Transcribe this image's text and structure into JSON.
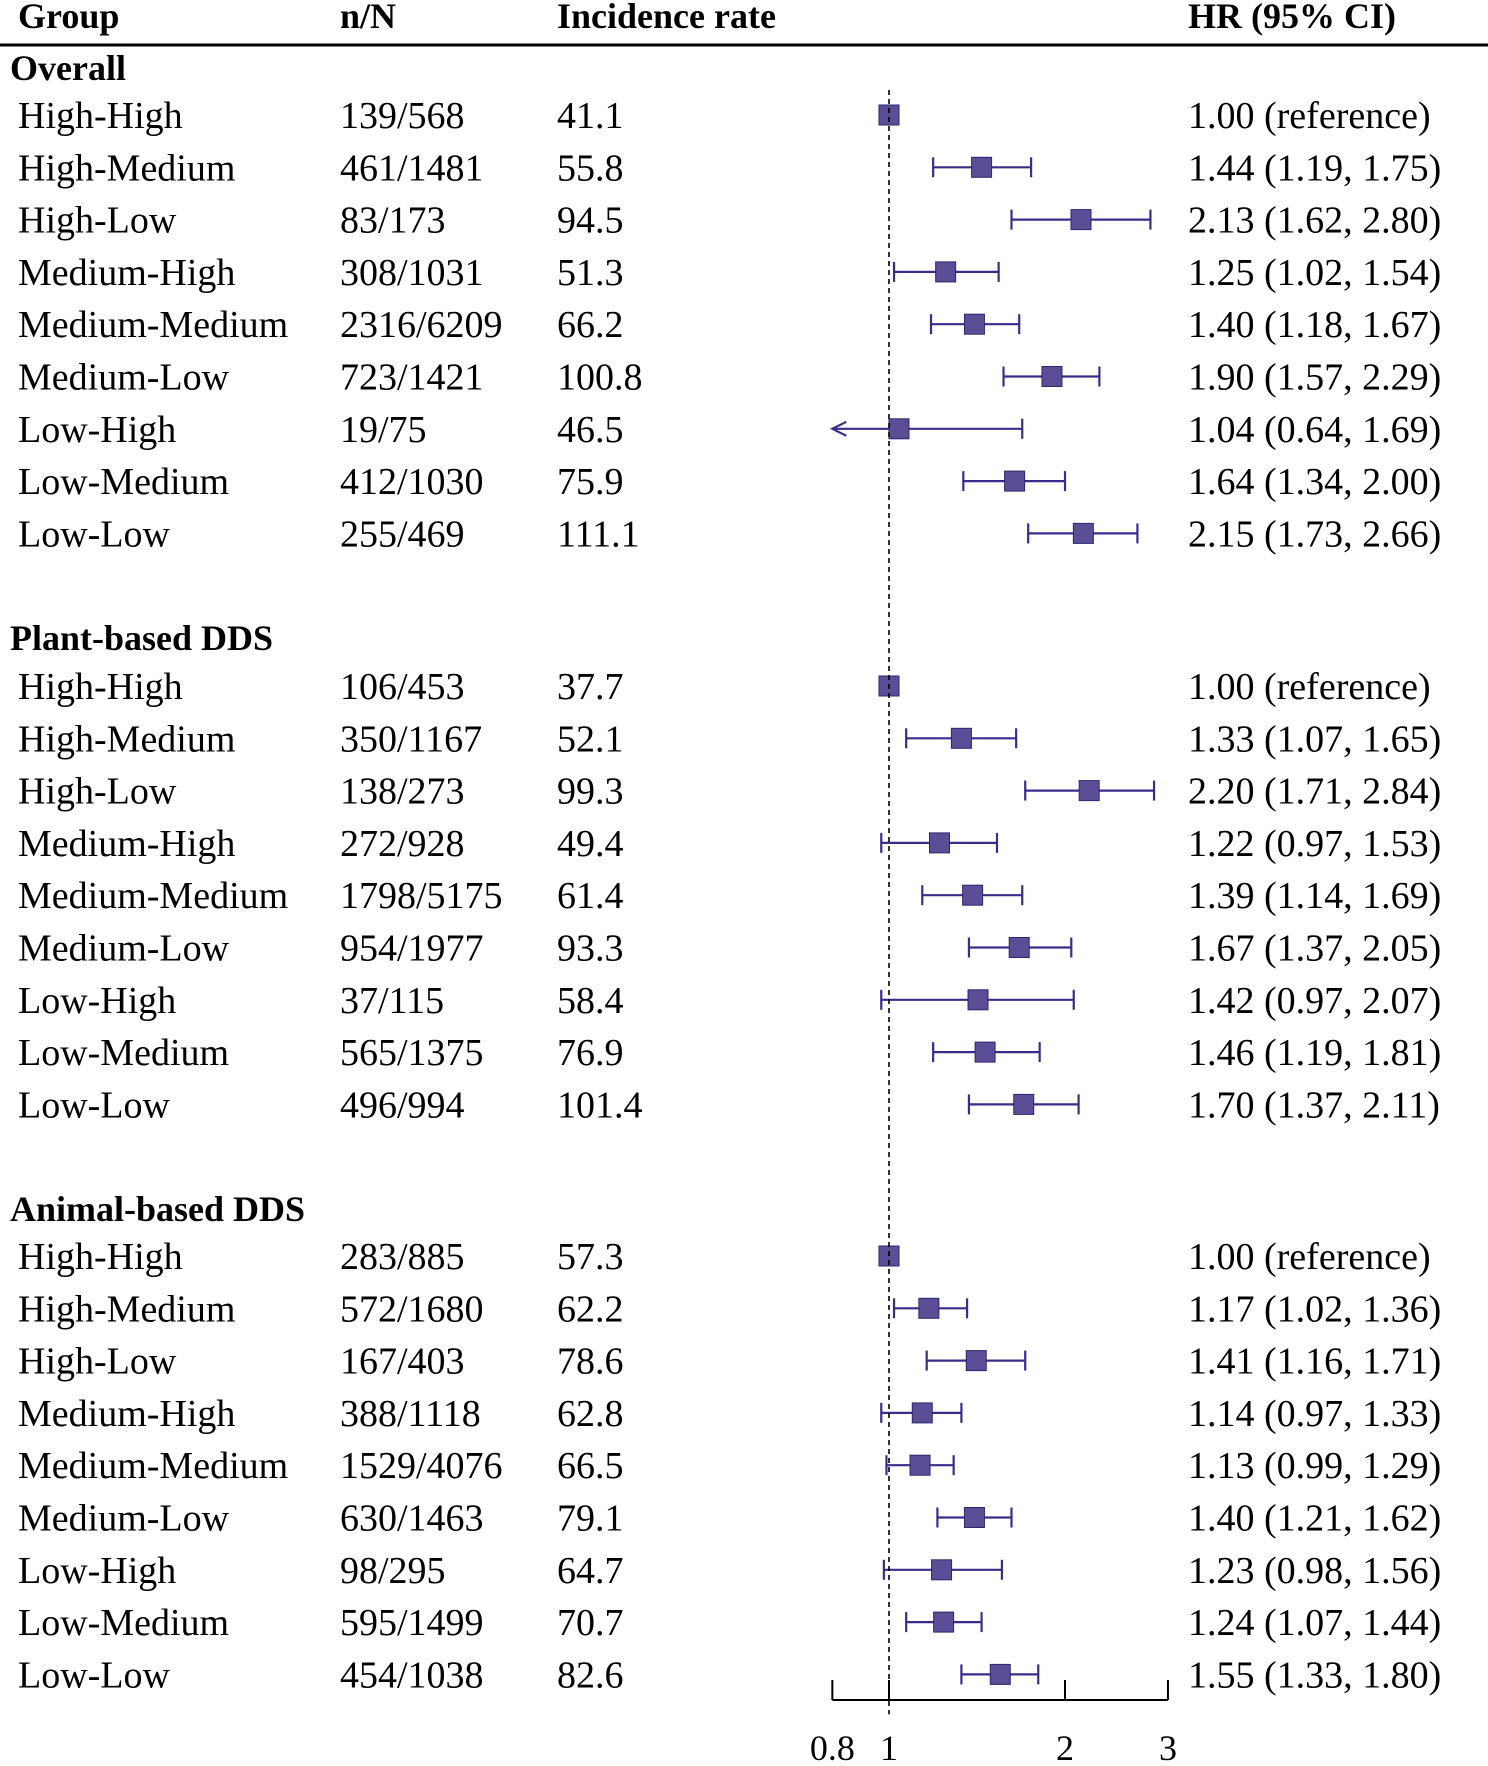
{
  "columns": {
    "group": "Group",
    "n_over_N": "n/N",
    "incidence_rate": "Incidence rate",
    "hr_ci": "HR (95% CI)"
  },
  "colors": {
    "marker": "#5B4E96",
    "ci_line": "#3A2C8C",
    "text": "#000000"
  },
  "chart_data": {
    "type": "forest",
    "x_scale": "log",
    "reference_value": 1,
    "xlim": [
      0.8,
      3
    ],
    "x_ticks": [
      0.8,
      1,
      2,
      3
    ],
    "x_tick_labels": [
      "0.8",
      "1",
      "2",
      "3"
    ],
    "sections": [
      {
        "title": "Overall",
        "rows": [
          {
            "group": "High-High",
            "n_over_N": "139/568",
            "rate": "41.1",
            "hr": 1.0,
            "lo": null,
            "hi": null,
            "hr_text": "1.00 (reference)"
          },
          {
            "group": "High-Medium",
            "n_over_N": "461/1481",
            "rate": "55.8",
            "hr": 1.44,
            "lo": 1.19,
            "hi": 1.75,
            "hr_text": "1.44 (1.19, 1.75)"
          },
          {
            "group": "High-Low",
            "n_over_N": "83/173",
            "rate": "94.5",
            "hr": 2.13,
            "lo": 1.62,
            "hi": 2.8,
            "hr_text": "2.13 (1.62, 2.80)"
          },
          {
            "group": "Medium-High",
            "n_over_N": "308/1031",
            "rate": "51.3",
            "hr": 1.25,
            "lo": 1.02,
            "hi": 1.54,
            "hr_text": "1.25 (1.02, 1.54)"
          },
          {
            "group": "Medium-Medium",
            "n_over_N": "2316/6209",
            "rate": "66.2",
            "hr": 1.4,
            "lo": 1.18,
            "hi": 1.67,
            "hr_text": "1.40 (1.18, 1.67)"
          },
          {
            "group": "Medium-Low",
            "n_over_N": "723/1421",
            "rate": "100.8",
            "hr": 1.9,
            "lo": 1.57,
            "hi": 2.29,
            "hr_text": "1.90 (1.57, 2.29)"
          },
          {
            "group": "Low-High",
            "n_over_N": "19/75",
            "rate": "46.5",
            "hr": 1.04,
            "lo": 0.64,
            "hi": 1.69,
            "hr_text": "1.04 (0.64, 1.69)"
          },
          {
            "group": "Low-Medium",
            "n_over_N": "412/1030",
            "rate": "75.9",
            "hr": 1.64,
            "lo": 1.34,
            "hi": 2.0,
            "hr_text": "1.64 (1.34, 2.00)"
          },
          {
            "group": "Low-Low",
            "n_over_N": "255/469",
            "rate": "111.1",
            "hr": 2.15,
            "lo": 1.73,
            "hi": 2.66,
            "hr_text": "2.15 (1.73, 2.66)"
          }
        ]
      },
      {
        "title": "Plant-based DDS",
        "rows": [
          {
            "group": "High-High",
            "n_over_N": "106/453",
            "rate": "37.7",
            "hr": 1.0,
            "lo": null,
            "hi": null,
            "hr_text": "1.00 (reference)"
          },
          {
            "group": "High-Medium",
            "n_over_N": "350/1167",
            "rate": "52.1",
            "hr": 1.33,
            "lo": 1.07,
            "hi": 1.65,
            "hr_text": "1.33 (1.07, 1.65)"
          },
          {
            "group": "High-Low",
            "n_over_N": "138/273",
            "rate": "99.3",
            "hr": 2.2,
            "lo": 1.71,
            "hi": 2.84,
            "hr_text": "2.20 (1.71, 2.84)"
          },
          {
            "group": "Medium-High",
            "n_over_N": "272/928",
            "rate": "49.4",
            "hr": 1.22,
            "lo": 0.97,
            "hi": 1.53,
            "hr_text": "1.22 (0.97, 1.53)"
          },
          {
            "group": "Medium-Medium",
            "n_over_N": "1798/5175",
            "rate": "61.4",
            "hr": 1.39,
            "lo": 1.14,
            "hi": 1.69,
            "hr_text": "1.39 (1.14, 1.69)"
          },
          {
            "group": "Medium-Low",
            "n_over_N": "954/1977",
            "rate": "93.3",
            "hr": 1.67,
            "lo": 1.37,
            "hi": 2.05,
            "hr_text": "1.67 (1.37, 2.05)"
          },
          {
            "group": "Low-High",
            "n_over_N": "37/115",
            "rate": "58.4",
            "hr": 1.42,
            "lo": 0.97,
            "hi": 2.07,
            "hr_text": "1.42 (0.97, 2.07)"
          },
          {
            "group": "Low-Medium",
            "n_over_N": "565/1375",
            "rate": "76.9",
            "hr": 1.46,
            "lo": 1.19,
            "hi": 1.81,
            "hr_text": "1.46 (1.19, 1.81)"
          },
          {
            "group": "Low-Low",
            "n_over_N": "496/994",
            "rate": "101.4",
            "hr": 1.7,
            "lo": 1.37,
            "hi": 2.11,
            "hr_text": "1.70 (1.37, 2.11)"
          }
        ]
      },
      {
        "title": "Animal-based DDS",
        "rows": [
          {
            "group": "High-High",
            "n_over_N": "283/885",
            "rate": "57.3",
            "hr": 1.0,
            "lo": null,
            "hi": null,
            "hr_text": "1.00 (reference)"
          },
          {
            "group": "High-Medium",
            "n_over_N": "572/1680",
            "rate": "62.2",
            "hr": 1.17,
            "lo": 1.02,
            "hi": 1.36,
            "hr_text": "1.17 (1.02, 1.36)"
          },
          {
            "group": "High-Low",
            "n_over_N": "167/403",
            "rate": "78.6",
            "hr": 1.41,
            "lo": 1.16,
            "hi": 1.71,
            "hr_text": "1.41 (1.16, 1.71)"
          },
          {
            "group": "Medium-High",
            "n_over_N": "388/1118",
            "rate": "62.8",
            "hr": 1.14,
            "lo": 0.97,
            "hi": 1.33,
            "hr_text": "1.14 (0.97, 1.33)"
          },
          {
            "group": "Medium-Medium",
            "n_over_N": "1529/4076",
            "rate": "66.5",
            "hr": 1.13,
            "lo": 0.99,
            "hi": 1.29,
            "hr_text": "1.13 (0.99, 1.29)"
          },
          {
            "group": "Medium-Low",
            "n_over_N": "630/1463",
            "rate": "79.1",
            "hr": 1.4,
            "lo": 1.21,
            "hi": 1.62,
            "hr_text": "1.40 (1.21, 1.62)"
          },
          {
            "group": "Low-High",
            "n_over_N": "98/295",
            "rate": "64.7",
            "hr": 1.23,
            "lo": 0.98,
            "hi": 1.56,
            "hr_text": "1.23 (0.98, 1.56)"
          },
          {
            "group": "Low-Medium",
            "n_over_N": "595/1499",
            "rate": "70.7",
            "hr": 1.24,
            "lo": 1.07,
            "hi": 1.44,
            "hr_text": "1.24 (1.07, 1.44)"
          },
          {
            "group": "Low-Low",
            "n_over_N": "454/1038",
            "rate": "82.6",
            "hr": 1.55,
            "lo": 1.33,
            "hi": 1.8,
            "hr_text": "1.55 (1.33, 1.80)"
          }
        ]
      }
    ]
  }
}
